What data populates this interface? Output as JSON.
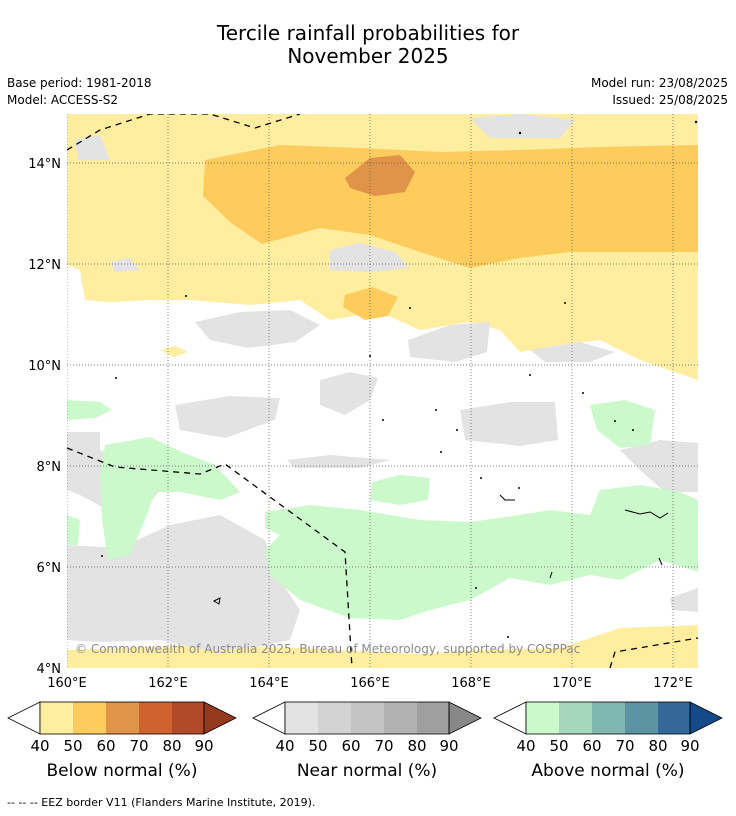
{
  "title_line1": "Tercile rainfall probabilities for",
  "title_line2": "November 2025",
  "base_period": "Base period: 1981-2018",
  "model": "Model: ACCESS-S2",
  "model_run": "Model run: 23/08/2025",
  "issued": "Issued: 25/08/2025",
  "copyright": "© Commonwealth of Australia 2025, Bureau of Meteorology, supported by COSPPac",
  "lat_ticks": [
    "14°N",
    "12°N",
    "10°N",
    "8°N",
    "6°N",
    "4°N"
  ],
  "lon_ticks": [
    "160°E",
    "162°E",
    "164°E",
    "166°E",
    "168°E",
    "170°E",
    "172°E"
  ],
  "colorbars": [
    {
      "label": "Below normal (%)",
      "ticks": [
        "40",
        "50",
        "60",
        "70",
        "80",
        "90"
      ],
      "colors": [
        "#ffeda0",
        "#fecc5c",
        "#e0944a",
        "#cf622f",
        "#b14a28",
        "#963a1e"
      ]
    },
    {
      "label": "Near normal (%)",
      "ticks": [
        "40",
        "50",
        "60",
        "70",
        "80",
        "90"
      ],
      "colors": [
        "#e3e3e3",
        "#d3d3d3",
        "#c4c4c4",
        "#b2b2b2",
        "#9f9f9f",
        "#888888"
      ]
    },
    {
      "label": "Above normal (%)",
      "ticks": [
        "40",
        "50",
        "60",
        "70",
        "80",
        "90"
      ],
      "colors": [
        "#ccf9cc",
        "#a6d7bc",
        "#80b6b0",
        "#5c93a2",
        "#336897",
        "#154a88"
      ]
    }
  ],
  "footer": "--  --  -- EEZ border V11 (Flanders Marine Institute, 2019)."
}
